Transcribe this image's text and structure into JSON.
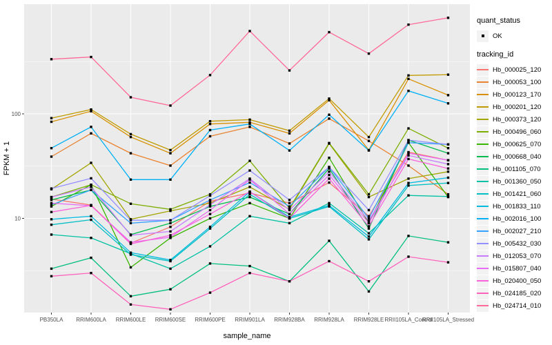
{
  "figure": {
    "background": "#FFFFFF",
    "panel_background": "#EBEBEB",
    "grid_color": "#FFFFFF",
    "point_color": "#000000",
    "axis_text_color": "#4D4D4D",
    "axis_title_color": "#000000"
  },
  "legend": {
    "quant_status_title": "quant_status",
    "quant_status_items": [
      {
        "label": "OK",
        "marker": "black-square"
      }
    ],
    "tracking_id_title": "tracking_id"
  },
  "chart_data": {
    "type": "line",
    "title": "",
    "xlabel": "sample_name",
    "ylabel": "FPKM + 1",
    "y_scale": "log10",
    "y_ticks": [
      10,
      100
    ],
    "ylim": [
      1.25,
      1100
    ],
    "grid": "on",
    "legend_position": "right",
    "categories": [
      "PB350LA",
      "RRIM600LA",
      "RRIM600LE",
      "RRIM600SE",
      "RRIM600PE",
      "RRIM901LA",
      "RRIM928BA",
      "RRIM928LA",
      "RRIM928LE",
      "RRII105LA_Control",
      "RRII105LA_Stressed"
    ],
    "series": [
      {
        "name": "Hb_000025_120",
        "color": "#F8766D",
        "values": [
          15.3,
          13.4,
          5.8,
          8.3,
          14.6,
          17.5,
          14,
          22,
          10.5,
          43,
          36
        ]
      },
      {
        "name": "Hb_000053_100",
        "color": "#EA8331",
        "values": [
          39,
          65,
          42,
          32,
          61,
          75,
          52,
          90,
          55,
          32,
          17
        ]
      },
      {
        "name": "Hb_000123_170",
        "color": "#D89000",
        "values": [
          84,
          106,
          60,
          42,
          80,
          83,
          65,
          135,
          45,
          216,
          151
        ]
      },
      {
        "name": "Hb_000201_120",
        "color": "#C09B00",
        "values": [
          91,
          110,
          64,
          45,
          85,
          88,
          69,
          140,
          60,
          233,
          237
        ]
      },
      {
        "name": "Hb_000373_120",
        "color": "#A3A500",
        "values": [
          19,
          34,
          9.8,
          11.8,
          14,
          20,
          12.2,
          52,
          16,
          24,
          28
        ]
      },
      {
        "name": "Hb_000496_060",
        "color": "#7CAE00",
        "values": [
          16,
          21,
          13.8,
          12.2,
          17,
          35.5,
          12.5,
          52.6,
          17,
          72.6,
          47
        ]
      },
      {
        "name": "Hb_000625_070",
        "color": "#39B600",
        "values": [
          13,
          21,
          3.4,
          6.5,
          10,
          14,
          10,
          38,
          9,
          53,
          16
        ]
      },
      {
        "name": "Hb_000668_040",
        "color": "#00BB4E",
        "values": [
          15,
          18.7,
          7.0,
          9.0,
          13,
          16,
          11,
          30,
          8,
          56,
          42
        ]
      },
      {
        "name": "Hb_001105_070",
        "color": "#00BF7D",
        "values": [
          3.3,
          4.2,
          1.8,
          2.1,
          3.7,
          3.5,
          2.5,
          6.1,
          2.0,
          6.8,
          5.9
        ]
      },
      {
        "name": "Hb_001360_050",
        "color": "#00C1A3",
        "values": [
          7.0,
          6.5,
          4.6,
          3.3,
          5.4,
          10.5,
          9.0,
          14,
          7.2,
          16.6,
          16.2
        ]
      },
      {
        "name": "Hb_001421_060",
        "color": "#00BFC4",
        "values": [
          8.7,
          9.7,
          4.5,
          3.9,
          8.0,
          17,
          10,
          13,
          6.3,
          20.6,
          21.8
        ]
      },
      {
        "name": "Hb_001833_110",
        "color": "#00BAE0",
        "values": [
          9.8,
          10.5,
          4.7,
          4.0,
          8.3,
          18,
          10.3,
          13.3,
          6.7,
          21.8,
          24.5
        ]
      },
      {
        "name": "Hb_002016_100",
        "color": "#00B0F6",
        "values": [
          47,
          75,
          23.5,
          23.5,
          70,
          80,
          44.6,
          98,
          44.6,
          166,
          126
        ]
      },
      {
        "name": "Hb_002027_210",
        "color": "#35A2FF",
        "values": [
          13.5,
          18.7,
          9.0,
          9.6,
          15,
          22,
          13,
          31,
          10,
          53,
          51
        ]
      },
      {
        "name": "Hb_005432_030",
        "color": "#9590FF",
        "values": [
          19.3,
          24.2,
          9.6,
          9.6,
          16.5,
          28.7,
          15,
          31,
          12,
          56,
          51
        ]
      },
      {
        "name": "Hb_012053_070",
        "color": "#C77CFF",
        "values": [
          16,
          20,
          6.9,
          7.5,
          13.5,
          24,
          12,
          28,
          9.5,
          40,
          33
        ]
      },
      {
        "name": "Hb_015807_040",
        "color": "#E76BF3",
        "values": [
          14,
          13.2,
          5.9,
          6.6,
          12,
          23.5,
          11,
          26,
          9,
          42,
          36
        ]
      },
      {
        "name": "Hb_020400_050",
        "color": "#FA62DB",
        "values": [
          11.5,
          13.3,
          5.7,
          6.9,
          11,
          18,
          10,
          24,
          8.4,
          37,
          30
        ]
      },
      {
        "name": "Hb_024185_020",
        "color": "#FF62BC",
        "values": [
          2.8,
          3.0,
          1.5,
          1.35,
          1.95,
          3.0,
          2.5,
          3.9,
          2.5,
          4.3,
          3.8
        ]
      },
      {
        "name": "Hb_024714_010",
        "color": "#FF6A98",
        "values": [
          333,
          350,
          144,
          120,
          235,
          620,
          260,
          605,
          377,
          714,
          830
        ]
      }
    ]
  }
}
